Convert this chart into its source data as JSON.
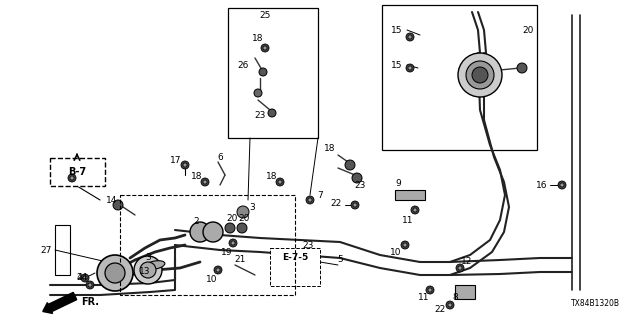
{
  "background_color": "#ffffff",
  "watermark": "TX84B1320B",
  "fig_width": 6.4,
  "fig_height": 3.2,
  "dpi": 100,
  "pipe_color": "#222222",
  "pipe_lw": 1.5,
  "thin_lw": 0.7,
  "label_fontsize": 6.5,
  "bold_label_fontsize": 7.0
}
